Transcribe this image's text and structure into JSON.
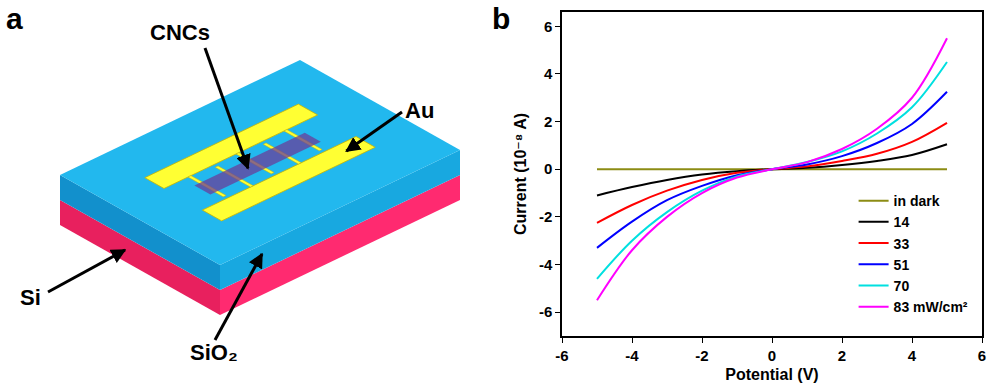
{
  "panel_labels": [
    "a",
    "b"
  ],
  "diagram": {
    "labels": {
      "cncs": "CNCs",
      "au": "Au",
      "si": "Si",
      "sio2": "SiO₂"
    }
  },
  "chart_data": {
    "type": "line",
    "xlabel": "Potential (V)",
    "ylabel": "Current (10⁻⁸ A)",
    "x": [
      -5,
      -4,
      -3,
      -2,
      -1,
      0,
      1,
      2,
      3,
      4,
      5
    ],
    "series": [
      {
        "name": "in dark",
        "color": "#8c8c14",
        "values": [
          0,
          0,
          0,
          0,
          0,
          0,
          0,
          0,
          0,
          0,
          0
        ]
      },
      {
        "name": "14",
        "color": "#000000",
        "values": [
          -1.1,
          -0.75,
          -0.45,
          -0.22,
          -0.08,
          0,
          0.06,
          0.18,
          0.35,
          0.6,
          1.05
        ]
      },
      {
        "name": "33",
        "color": "#ff0000",
        "values": [
          -2.25,
          -1.5,
          -0.9,
          -0.45,
          -0.15,
          0,
          0.12,
          0.35,
          0.65,
          1.15,
          1.95
        ]
      },
      {
        "name": "51",
        "color": "#0000ff",
        "values": [
          -3.3,
          -2.2,
          -1.3,
          -0.7,
          -0.25,
          0,
          0.2,
          0.55,
          1.1,
          1.9,
          3.25
        ]
      },
      {
        "name": "70",
        "color": "#00e0e0",
        "values": [
          -4.6,
          -3.0,
          -1.8,
          -0.9,
          -0.3,
          0,
          0.3,
          0.75,
          1.5,
          2.6,
          4.5
        ]
      },
      {
        "name": "83 mW/cm²",
        "color": "#ff00ff",
        "values": [
          -5.5,
          -3.4,
          -2.0,
          -1.0,
          -0.35,
          0,
          0.3,
          0.85,
          1.7,
          3.0,
          5.5
        ]
      }
    ],
    "xlim": [
      -6,
      6
    ],
    "xticks": [
      -6,
      -4,
      -2,
      0,
      2,
      4,
      6
    ],
    "ylim": [
      -7,
      6.6
    ],
    "yticks": [
      -6,
      -4,
      -2,
      0,
      2,
      4,
      6
    ],
    "grid": false,
    "legend": "bottom right"
  }
}
